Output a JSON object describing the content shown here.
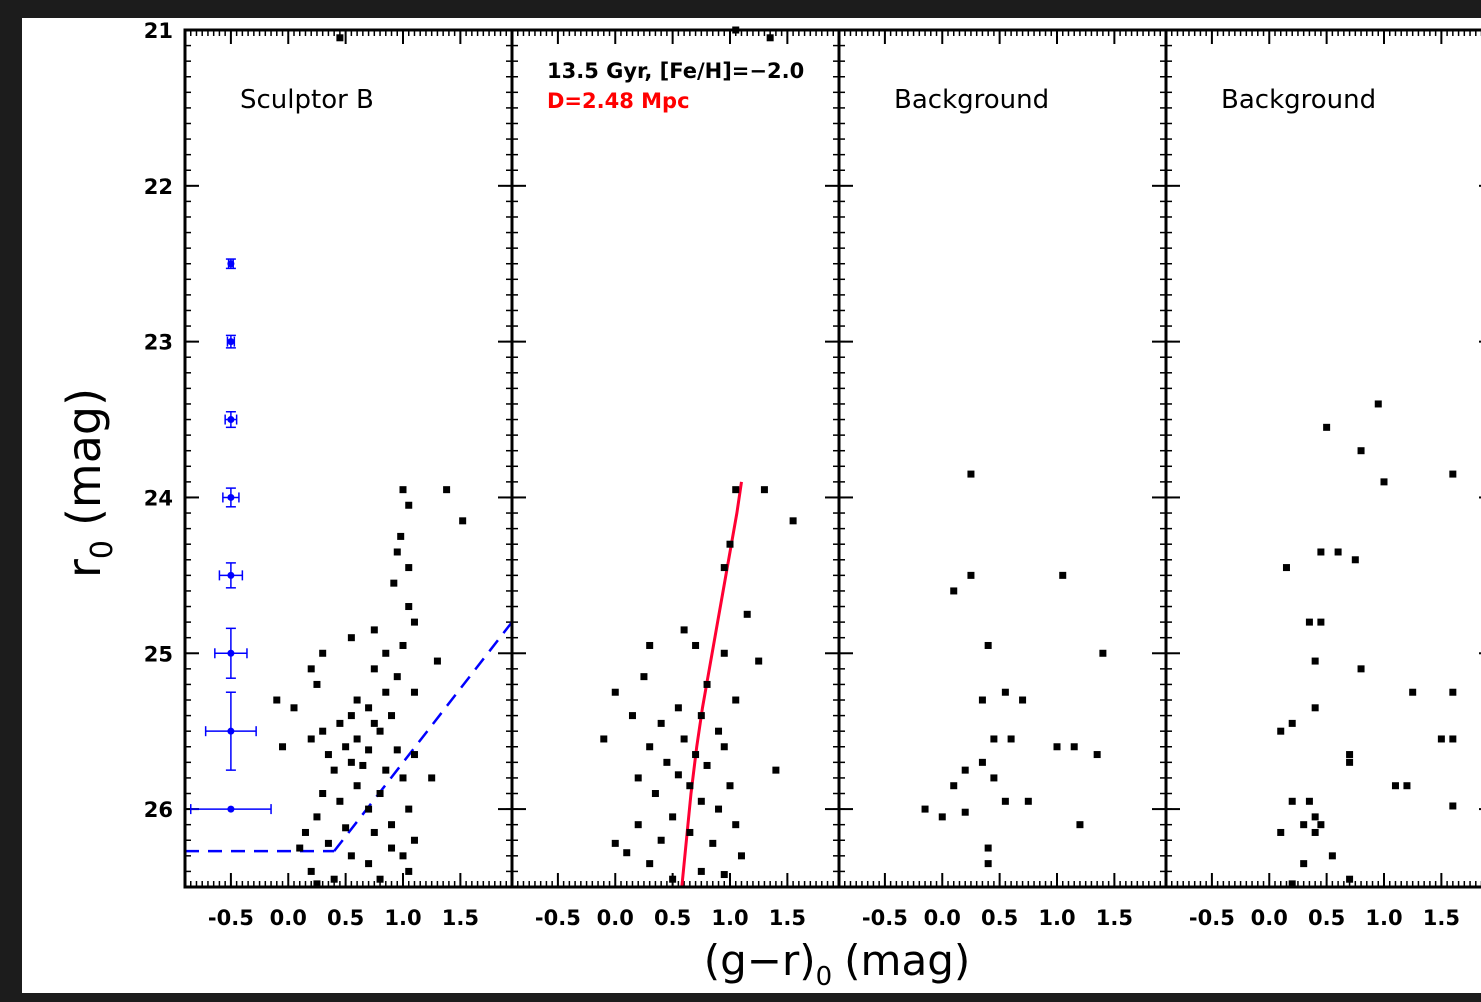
{
  "figure": {
    "y_axis_label": "r",
    "y_axis_subscript": "0",
    "y_axis_unit": "(mag)",
    "x_axis_label_main": "(g−r)",
    "x_axis_subscript": "0",
    "x_axis_unit": "(mag)"
  },
  "colors": {
    "points": "#000000",
    "error_bars": "#0000ff",
    "selection_box": "#0000ff",
    "isochrone": "#ff0033",
    "distance_label": "#ff0000"
  },
  "chart_data": [
    {
      "type": "scatter",
      "title": "Sculptor B",
      "xlim": [
        -0.9,
        1.95
      ],
      "ylim": [
        26.5,
        21
      ],
      "x_ticks": [
        "-0.5",
        "0.0",
        "0.5",
        "1.0",
        "1.5"
      ],
      "y_ticks": [
        "21",
        "22",
        "23",
        "24",
        "25",
        "26"
      ],
      "points": [
        [
          1.0,
          23.95
        ],
        [
          1.38,
          23.95
        ],
        [
          1.05,
          24.05
        ],
        [
          1.52,
          24.15
        ],
        [
          0.98,
          24.25
        ],
        [
          0.95,
          24.35
        ],
        [
          1.05,
          24.45
        ],
        [
          0.92,
          24.55
        ],
        [
          1.05,
          24.7
        ],
        [
          1.1,
          24.8
        ],
        [
          0.75,
          24.85
        ],
        [
          0.55,
          24.9
        ],
        [
          1.0,
          24.95
        ],
        [
          0.3,
          25.0
        ],
        [
          0.85,
          25.0
        ],
        [
          1.3,
          25.05
        ],
        [
          0.2,
          25.1
        ],
        [
          0.75,
          25.1
        ],
        [
          0.95,
          25.15
        ],
        [
          0.25,
          25.2
        ],
        [
          0.85,
          25.25
        ],
        [
          1.1,
          25.25
        ],
        [
          -0.1,
          25.3
        ],
        [
          0.6,
          25.3
        ],
        [
          0.05,
          25.35
        ],
        [
          0.7,
          25.35
        ],
        [
          0.9,
          25.4
        ],
        [
          0.55,
          25.4
        ],
        [
          0.75,
          25.45
        ],
        [
          0.45,
          25.45
        ],
        [
          0.3,
          25.5
        ],
        [
          0.8,
          25.5
        ],
        [
          0.6,
          25.55
        ],
        [
          0.2,
          25.55
        ],
        [
          -0.05,
          25.6
        ],
        [
          0.5,
          25.6
        ],
        [
          0.7,
          25.62
        ],
        [
          0.95,
          25.62
        ],
        [
          1.1,
          25.65
        ],
        [
          0.35,
          25.65
        ],
        [
          0.55,
          25.7
        ],
        [
          0.65,
          25.72
        ],
        [
          0.4,
          25.75
        ],
        [
          0.85,
          25.75
        ],
        [
          1.0,
          25.8
        ],
        [
          1.25,
          25.8
        ],
        [
          0.6,
          25.85
        ],
        [
          0.3,
          25.9
        ],
        [
          0.8,
          25.9
        ],
        [
          0.45,
          25.95
        ],
        [
          0.7,
          26.0
        ],
        [
          1.05,
          26.0
        ],
        [
          0.25,
          26.05
        ],
        [
          0.9,
          26.1
        ],
        [
          0.5,
          26.12
        ],
        [
          0.15,
          26.15
        ],
        [
          0.75,
          26.15
        ],
        [
          1.1,
          26.2
        ],
        [
          0.35,
          26.22
        ],
        [
          0.1,
          26.25
        ],
        [
          0.9,
          26.25
        ],
        [
          0.55,
          26.3
        ],
        [
          1.0,
          26.3
        ],
        [
          0.7,
          26.35
        ],
        [
          0.2,
          26.4
        ],
        [
          1.05,
          26.4
        ],
        [
          0.4,
          26.45
        ],
        [
          0.25,
          26.48
        ],
        [
          0.8,
          26.45
        ],
        [
          0.45,
          21.05
        ]
      ],
      "error_bars": [
        {
          "y": 22.5,
          "xerr": 0.02,
          "yerr": 0.03
        },
        {
          "y": 23.0,
          "xerr": 0.03,
          "yerr": 0.04
        },
        {
          "y": 23.5,
          "xerr": 0.05,
          "yerr": 0.05
        },
        {
          "y": 24.0,
          "xerr": 0.07,
          "yerr": 0.06
        },
        {
          "y": 24.5,
          "xerr": 0.1,
          "yerr": 0.08
        },
        {
          "y": 25.0,
          "xerr": 0.14,
          "yerr": 0.16
        },
        {
          "y": 25.5,
          "xerr": 0.22,
          "yerr": 0.25
        },
        {
          "y": 26.0,
          "xerr": 0.35,
          "yerr": 0.0
        }
      ],
      "error_bar_x": -0.5,
      "selection_lines": [
        {
          "from": [
            -0.9,
            26.27
          ],
          "to": [
            0.4,
            26.27
          ]
        },
        {
          "from": [
            0.4,
            26.27
          ],
          "to": [
            1.95,
            24.8
          ]
        }
      ]
    },
    {
      "type": "scatter",
      "title": "13.5 Gyr, [Fe/H]=−2.0",
      "subtitle": "D=2.48 Mpc",
      "xlim": [
        -0.9,
        1.95
      ],
      "ylim": [
        26.5,
        21
      ],
      "x_ticks": [
        "-0.5",
        "0.0",
        "0.5",
        "1.0",
        "1.5"
      ],
      "y_ticks": [],
      "points": [
        [
          1.05,
          23.95
        ],
        [
          1.3,
          23.95
        ],
        [
          1.55,
          24.15
        ],
        [
          1.0,
          24.3
        ],
        [
          0.95,
          24.45
        ],
        [
          1.15,
          24.75
        ],
        [
          0.6,
          24.85
        ],
        [
          0.3,
          24.95
        ],
        [
          0.7,
          24.95
        ],
        [
          0.95,
          25.0
        ],
        [
          1.25,
          25.05
        ],
        [
          0.25,
          25.15
        ],
        [
          0.8,
          25.2
        ],
        [
          0.0,
          25.25
        ],
        [
          1.05,
          25.3
        ],
        [
          0.55,
          25.35
        ],
        [
          0.15,
          25.4
        ],
        [
          0.75,
          25.4
        ],
        [
          0.4,
          25.45
        ],
        [
          0.9,
          25.5
        ],
        [
          -0.1,
          25.55
        ],
        [
          0.6,
          25.55
        ],
        [
          0.3,
          25.6
        ],
        [
          0.95,
          25.6
        ],
        [
          0.7,
          25.65
        ],
        [
          0.45,
          25.7
        ],
        [
          0.8,
          25.72
        ],
        [
          1.4,
          25.75
        ],
        [
          0.55,
          25.78
        ],
        [
          0.2,
          25.8
        ],
        [
          0.65,
          25.85
        ],
        [
          1.0,
          25.85
        ],
        [
          0.35,
          25.9
        ],
        [
          0.75,
          25.95
        ],
        [
          0.9,
          26.0
        ],
        [
          0.5,
          26.05
        ],
        [
          0.2,
          26.1
        ],
        [
          1.05,
          26.1
        ],
        [
          0.65,
          26.15
        ],
        [
          0.0,
          26.22
        ],
        [
          0.4,
          26.2
        ],
        [
          0.85,
          26.22
        ],
        [
          0.1,
          26.28
        ],
        [
          1.1,
          26.3
        ],
        [
          0.3,
          26.35
        ],
        [
          0.75,
          26.4
        ],
        [
          0.5,
          26.45
        ],
        [
          0.95,
          26.42
        ],
        [
          1.05,
          21.0
        ],
        [
          1.35,
          21.05
        ]
      ],
      "isochrone": {
        "color_index": [
          0.58,
          0.62,
          0.66,
          0.71,
          0.76,
          0.82,
          0.88,
          0.94,
          1.0,
          1.06,
          1.1
        ],
        "r0": [
          26.5,
          26.2,
          25.9,
          25.6,
          25.35,
          25.1,
          24.85,
          24.6,
          24.35,
          24.1,
          23.9
        ]
      }
    },
    {
      "type": "scatter",
      "title": "Background",
      "xlim": [
        -0.9,
        1.95
      ],
      "ylim": [
        26.5,
        21
      ],
      "x_ticks": [
        "-0.5",
        "0.0",
        "0.5",
        "1.0",
        "1.5"
      ],
      "y_ticks": [],
      "points": [
        [
          0.25,
          23.85
        ],
        [
          0.25,
          24.5
        ],
        [
          1.05,
          24.5
        ],
        [
          0.1,
          24.6
        ],
        [
          0.4,
          24.95
        ],
        [
          1.4,
          25.0
        ],
        [
          0.35,
          25.3
        ],
        [
          0.55,
          25.25
        ],
        [
          0.7,
          25.3
        ],
        [
          0.45,
          25.55
        ],
        [
          0.6,
          25.55
        ],
        [
          1.0,
          25.6
        ],
        [
          1.15,
          25.6
        ],
        [
          1.35,
          25.65
        ],
        [
          0.35,
          25.7
        ],
        [
          0.2,
          25.75
        ],
        [
          0.45,
          25.8
        ],
        [
          0.1,
          25.85
        ],
        [
          0.55,
          25.95
        ],
        [
          0.75,
          25.95
        ],
        [
          -0.15,
          26.0
        ],
        [
          0.2,
          26.02
        ],
        [
          0.0,
          26.05
        ],
        [
          1.2,
          26.1
        ],
        [
          0.4,
          26.25
        ],
        [
          0.4,
          26.35
        ]
      ]
    },
    {
      "type": "scatter",
      "title": "Background",
      "xlim": [
        -0.9,
        1.95
      ],
      "ylim": [
        26.5,
        21
      ],
      "x_ticks": [
        "-0.5",
        "0.0",
        "0.5",
        "1.0",
        "1.5"
      ],
      "y_ticks": [],
      "points": [
        [
          0.95,
          23.4
        ],
        [
          0.5,
          23.55
        ],
        [
          0.8,
          23.7
        ],
        [
          1.0,
          23.9
        ],
        [
          1.6,
          23.85
        ],
        [
          1.9,
          23.85
        ],
        [
          0.45,
          24.35
        ],
        [
          0.6,
          24.35
        ],
        [
          0.75,
          24.4
        ],
        [
          0.15,
          24.45
        ],
        [
          0.35,
          24.8
        ],
        [
          0.45,
          24.8
        ],
        [
          0.4,
          25.05
        ],
        [
          0.8,
          25.1
        ],
        [
          1.6,
          25.25
        ],
        [
          1.25,
          25.25
        ],
        [
          0.4,
          25.35
        ],
        [
          0.2,
          25.45
        ],
        [
          0.1,
          25.5
        ],
        [
          1.5,
          25.55
        ],
        [
          1.6,
          25.55
        ],
        [
          0.7,
          25.65
        ],
        [
          0.7,
          25.7
        ],
        [
          1.1,
          25.85
        ],
        [
          1.2,
          25.85
        ],
        [
          0.2,
          25.95
        ],
        [
          0.35,
          25.95
        ],
        [
          1.6,
          25.98
        ],
        [
          0.4,
          26.05
        ],
        [
          0.3,
          26.1
        ],
        [
          0.45,
          26.1
        ],
        [
          0.1,
          26.15
        ],
        [
          0.4,
          26.15
        ],
        [
          0.55,
          26.3
        ],
        [
          0.3,
          26.35
        ],
        [
          0.7,
          26.45
        ],
        [
          0.2,
          26.48
        ]
      ]
    }
  ]
}
